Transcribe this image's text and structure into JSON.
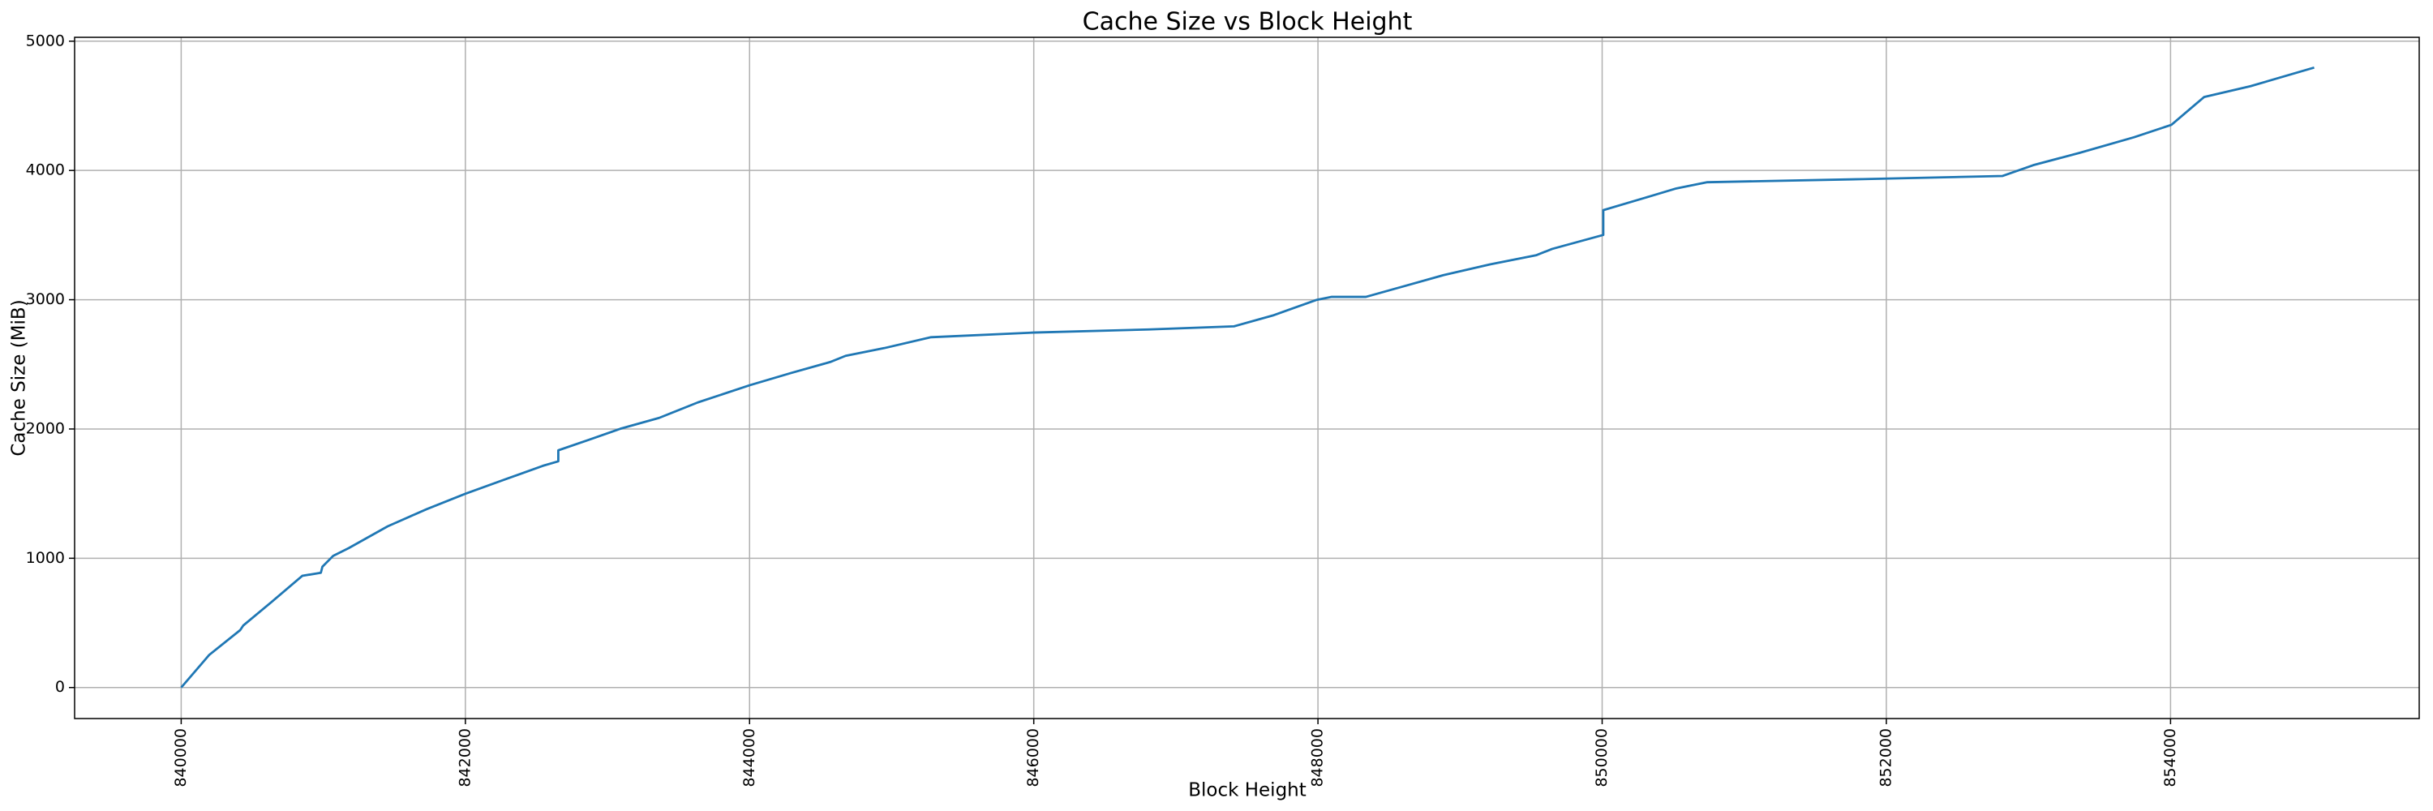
{
  "chart_data": {
    "type": "line",
    "title": "Cache Size vs Block Height",
    "x_label": "Block Height",
    "y_label": "Cache Size (MiB)",
    "x": [
      840000,
      840197,
      840415,
      840437,
      840634,
      840852,
      840983,
      840994,
      841070,
      841180,
      841453,
      841726,
      842000,
      842272,
      842545,
      842654,
      842654,
      842873,
      843091,
      843364,
      843637,
      844000,
      844294,
      844567,
      844676,
      844949,
      845277,
      846000,
      846808,
      847409,
      847682,
      847988,
      848097,
      848337,
      848610,
      848883,
      849211,
      849538,
      849648,
      850008,
      850008,
      850303,
      850522,
      850740,
      851833,
      852816,
      853034,
      853362,
      853744,
      854006,
      854236,
      854563,
      855011
    ],
    "values": [
      0,
      252,
      444,
      480,
      660,
      864,
      888,
      935,
      1019,
      1079,
      1247,
      1379,
      1499,
      1607,
      1715,
      1750,
      1835,
      1918,
      2002,
      2086,
      2206,
      2338,
      2434,
      2518,
      2566,
      2626,
      2710,
      2746,
      2770,
      2794,
      2878,
      2998,
      3022,
      3022,
      3106,
      3190,
      3273,
      3345,
      3393,
      3501,
      3693,
      3789,
      3861,
      3909,
      3933,
      3957,
      4041,
      4137,
      4257,
      4353,
      4568,
      4652,
      4796
    ],
    "color": "#1f77b4",
    "xlim": [
      839250,
      855750
    ],
    "xticks": [
      840000,
      842000,
      844000,
      846000,
      848000,
      850000,
      852000,
      854000
    ],
    "ylim": [
      -240,
      5030
    ],
    "yticks": [
      0,
      1000,
      2000,
      3000,
      4000,
      5000
    ],
    "grid": true
  }
}
